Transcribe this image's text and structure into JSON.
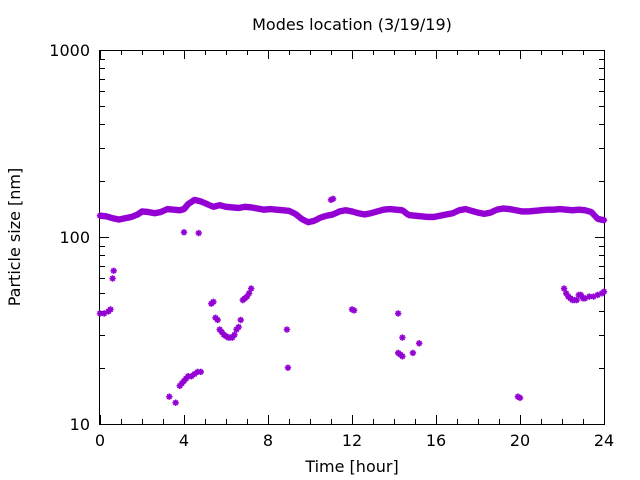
{
  "chart_data": {
    "type": "scatter",
    "title": "Modes location (3/19/19)",
    "xlabel": "Time [hour]",
    "ylabel": "Particle size [nm]",
    "xlim": [
      0,
      24
    ],
    "ylim": [
      10,
      1000
    ],
    "yscale": "log",
    "x_ticks": [
      0,
      4,
      8,
      12,
      16,
      20,
      24
    ],
    "y_ticks": [
      10,
      100,
      1000
    ],
    "grid": false,
    "marker_color": "#9400d3",
    "main_mode": [
      [
        0.0,
        130
      ],
      [
        0.3,
        129
      ],
      [
        0.6,
        126
      ],
      [
        0.9,
        124
      ],
      [
        1.2,
        126
      ],
      [
        1.5,
        128
      ],
      [
        1.8,
        132
      ],
      [
        2.0,
        137
      ],
      [
        2.3,
        136
      ],
      [
        2.6,
        134
      ],
      [
        2.9,
        136
      ],
      [
        3.2,
        141
      ],
      [
        3.5,
        140
      ],
      [
        3.8,
        139
      ],
      [
        4.0,
        141
      ],
      [
        4.2,
        150
      ],
      [
        4.5,
        158
      ],
      [
        4.8,
        155
      ],
      [
        5.1,
        150
      ],
      [
        5.4,
        145
      ],
      [
        5.7,
        148
      ],
      [
        6.0,
        145
      ],
      [
        6.3,
        144
      ],
      [
        6.6,
        143
      ],
      [
        6.9,
        145
      ],
      [
        7.2,
        144
      ],
      [
        7.5,
        142
      ],
      [
        7.8,
        140
      ],
      [
        8.1,
        141
      ],
      [
        8.4,
        140
      ],
      [
        8.7,
        139
      ],
      [
        9.0,
        138
      ],
      [
        9.3,
        133
      ],
      [
        9.6,
        125
      ],
      [
        9.9,
        120
      ],
      [
        10.2,
        122
      ],
      [
        10.5,
        127
      ],
      [
        10.8,
        130
      ],
      [
        11.1,
        132
      ],
      [
        11.4,
        137
      ],
      [
        11.7,
        139
      ],
      [
        12.0,
        137
      ],
      [
        12.3,
        134
      ],
      [
        12.6,
        132
      ],
      [
        12.9,
        134
      ],
      [
        13.2,
        137
      ],
      [
        13.5,
        140
      ],
      [
        13.8,
        141
      ],
      [
        14.1,
        140
      ],
      [
        14.4,
        139
      ],
      [
        14.7,
        131
      ],
      [
        15.0,
        130
      ],
      [
        15.3,
        129
      ],
      [
        15.6,
        128
      ],
      [
        15.9,
        128
      ],
      [
        16.2,
        130
      ],
      [
        16.5,
        132
      ],
      [
        16.8,
        134
      ],
      [
        17.1,
        139
      ],
      [
        17.4,
        141
      ],
      [
        17.7,
        138
      ],
      [
        18.0,
        135
      ],
      [
        18.3,
        133
      ],
      [
        18.6,
        135
      ],
      [
        18.9,
        140
      ],
      [
        19.2,
        142
      ],
      [
        19.5,
        141
      ],
      [
        19.8,
        139
      ],
      [
        20.1,
        137
      ],
      [
        20.4,
        137
      ],
      [
        20.7,
        138
      ],
      [
        21.0,
        139
      ],
      [
        21.3,
        140
      ],
      [
        21.6,
        140
      ],
      [
        21.9,
        141
      ],
      [
        22.2,
        140
      ],
      [
        22.5,
        139
      ],
      [
        22.8,
        140
      ],
      [
        23.1,
        139
      ],
      [
        23.4,
        136
      ],
      [
        23.7,
        125
      ],
      [
        24.0,
        123
      ]
    ],
    "extra_points": [
      [
        11.0,
        158
      ],
      [
        11.1,
        160
      ],
      [
        4.0,
        106
      ],
      [
        4.7,
        105
      ],
      [
        0.0,
        39
      ],
      [
        0.2,
        39
      ],
      [
        0.4,
        40
      ],
      [
        0.5,
        41
      ],
      [
        0.6,
        60
      ],
      [
        0.65,
        66
      ],
      [
        3.3,
        14
      ],
      [
        3.6,
        13
      ],
      [
        3.8,
        16
      ],
      [
        3.9,
        16.5
      ],
      [
        4.0,
        17
      ],
      [
        4.1,
        17.5
      ],
      [
        4.2,
        18
      ],
      [
        4.35,
        18
      ],
      [
        4.5,
        18.5
      ],
      [
        4.65,
        19
      ],
      [
        4.8,
        19
      ],
      [
        5.3,
        44
      ],
      [
        5.4,
        45
      ],
      [
        5.5,
        37
      ],
      [
        5.6,
        36
      ],
      [
        5.7,
        32
      ],
      [
        5.8,
        31
      ],
      [
        5.9,
        30
      ],
      [
        6.0,
        29.5
      ],
      [
        6.1,
        29
      ],
      [
        6.2,
        29
      ],
      [
        6.3,
        29
      ],
      [
        6.4,
        30
      ],
      [
        6.5,
        32
      ],
      [
        6.6,
        33
      ],
      [
        6.7,
        36
      ],
      [
        6.8,
        46
      ],
      [
        6.9,
        47
      ],
      [
        7.0,
        48
      ],
      [
        7.1,
        50
      ],
      [
        7.2,
        53
      ],
      [
        8.9,
        32
      ],
      [
        8.95,
        20
      ],
      [
        12.0,
        41
      ],
      [
        12.1,
        40.5
      ],
      [
        14.2,
        39
      ],
      [
        14.2,
        24
      ],
      [
        14.3,
        23.5
      ],
      [
        14.4,
        23
      ],
      [
        14.4,
        29
      ],
      [
        14.9,
        24
      ],
      [
        15.2,
        27
      ],
      [
        19.9,
        14
      ],
      [
        20.0,
        13.8
      ],
      [
        22.1,
        53
      ],
      [
        22.2,
        50
      ],
      [
        22.3,
        48
      ],
      [
        22.4,
        47
      ],
      [
        22.5,
        46
      ],
      [
        22.6,
        46
      ],
      [
        22.7,
        46
      ],
      [
        22.8,
        49
      ],
      [
        22.9,
        49
      ],
      [
        23.0,
        47
      ],
      [
        23.1,
        47
      ],
      [
        23.3,
        48
      ],
      [
        23.5,
        48
      ],
      [
        23.7,
        49
      ],
      [
        23.9,
        50
      ],
      [
        24.0,
        51
      ]
    ]
  }
}
